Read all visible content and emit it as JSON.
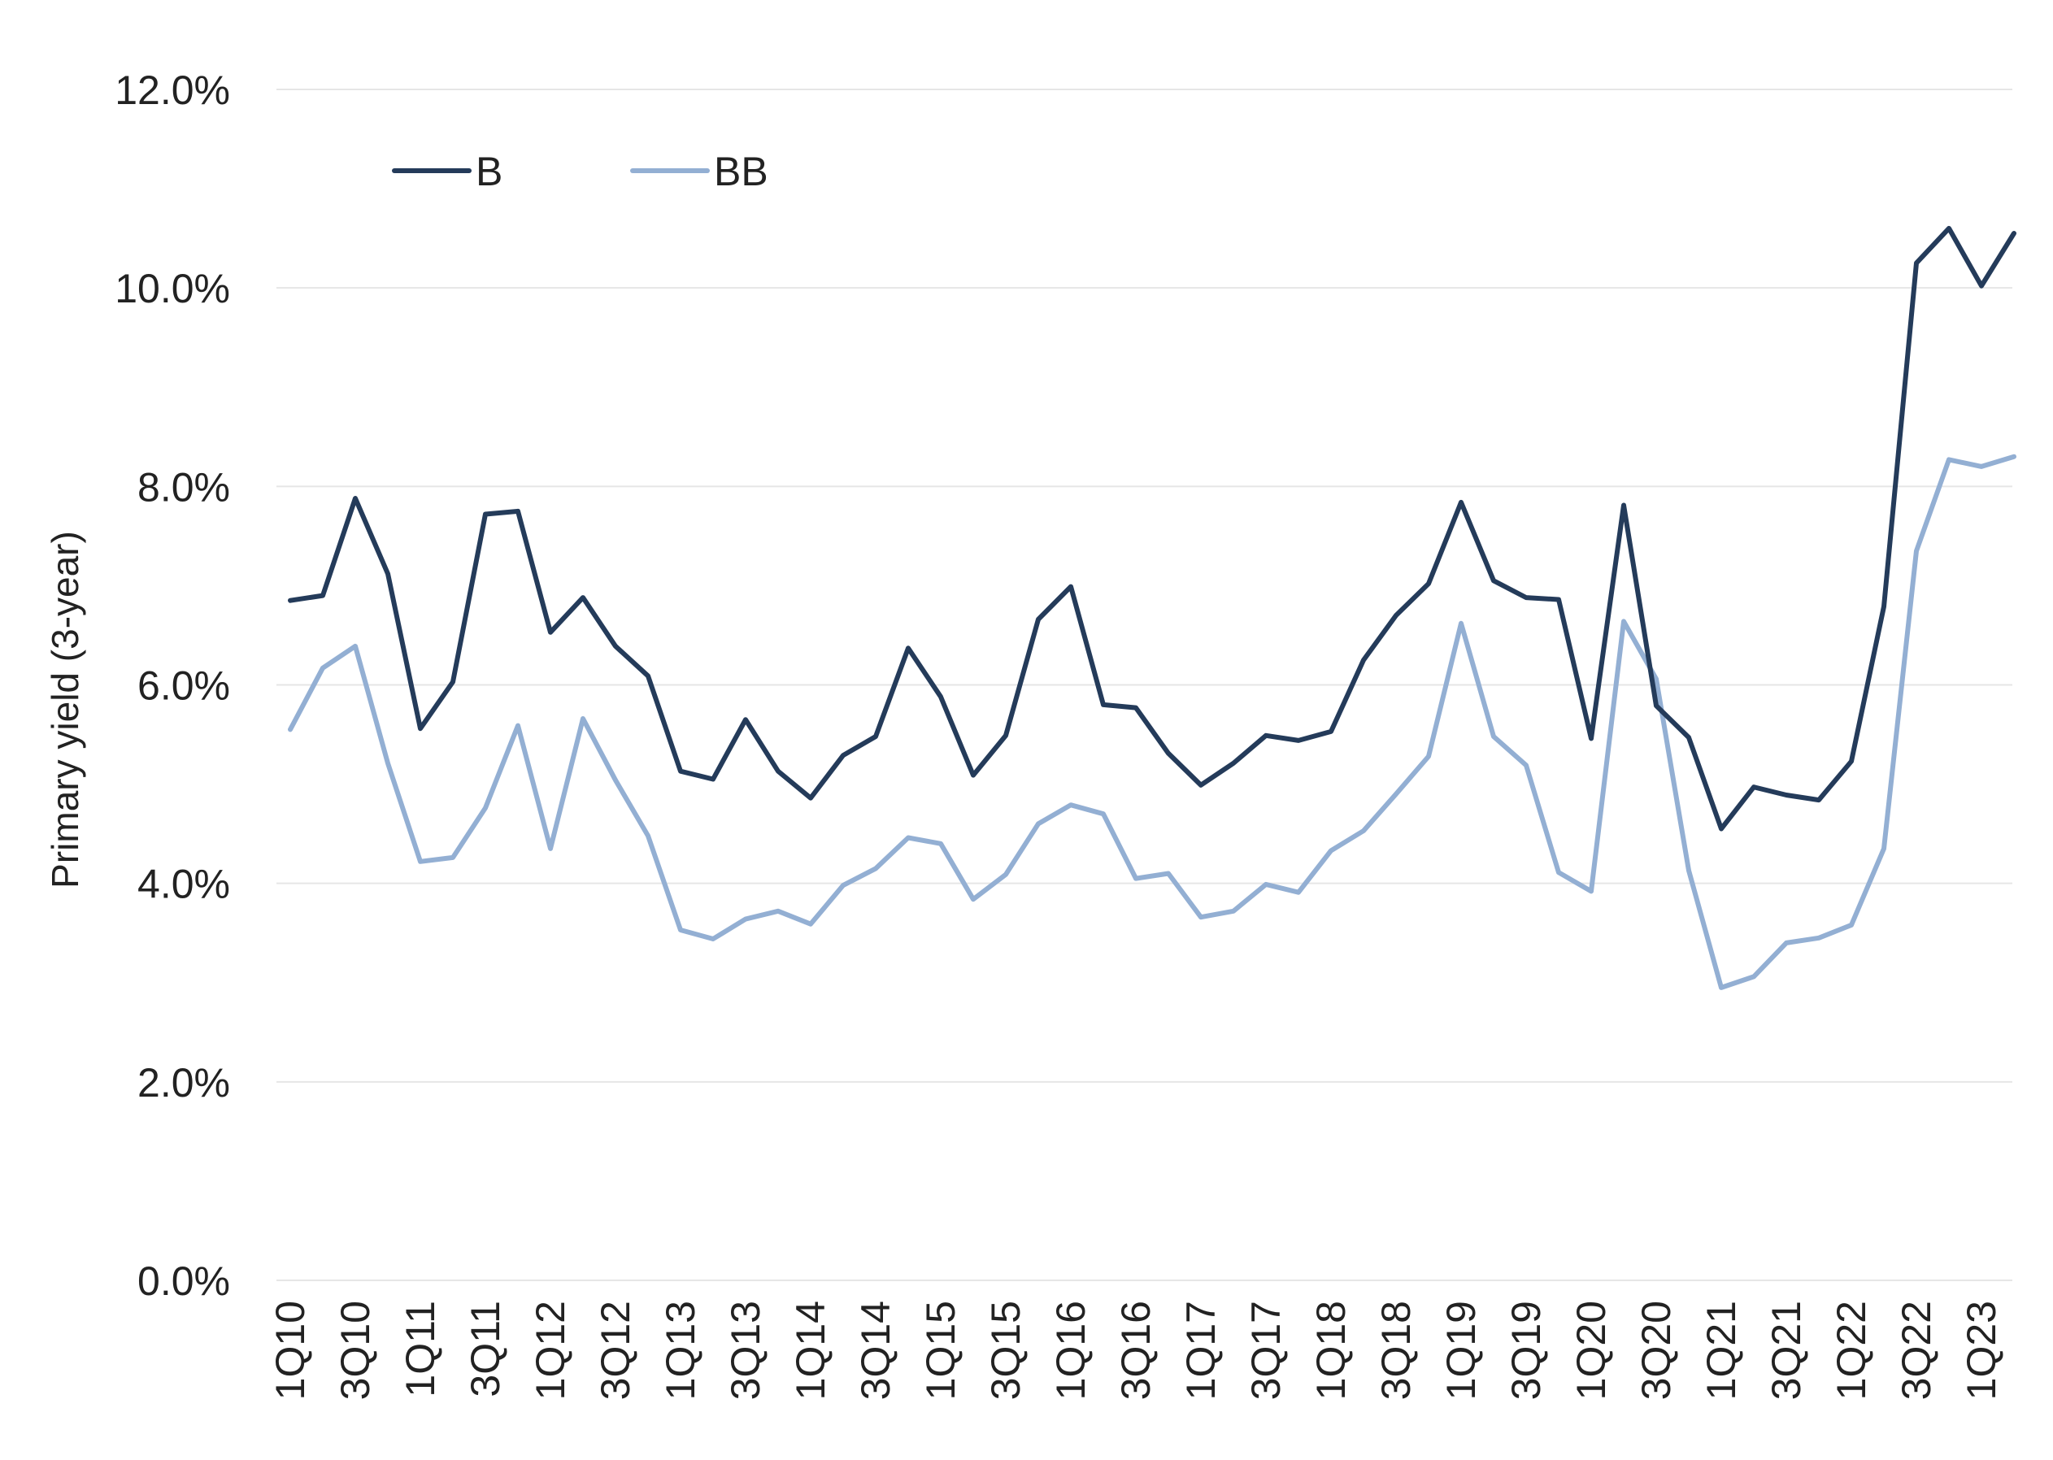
{
  "chart_data": {
    "type": "line",
    "title": "",
    "xlabel": "",
    "ylabel": "Primary yield (3-year)",
    "ylim": [
      0,
      12
    ],
    "yticks": [
      "0.0%",
      "2.0%",
      "4.0%",
      "6.0%",
      "8.0%",
      "10.0%",
      "12.0%"
    ],
    "grid": true,
    "legend_position": "top-left",
    "categories": [
      "1Q10",
      "2Q10",
      "3Q10",
      "4Q10",
      "1Q11",
      "2Q11",
      "3Q11",
      "4Q11",
      "1Q12",
      "2Q12",
      "3Q12",
      "4Q12",
      "1Q13",
      "2Q13",
      "3Q13",
      "4Q13",
      "1Q14",
      "2Q14",
      "3Q14",
      "4Q14",
      "1Q15",
      "2Q15",
      "3Q15",
      "4Q15",
      "1Q16",
      "2Q16",
      "3Q16",
      "4Q16",
      "1Q17",
      "2Q17",
      "3Q17",
      "4Q17",
      "1Q18",
      "2Q18",
      "3Q18",
      "4Q18",
      "1Q19",
      "2Q19",
      "3Q19",
      "4Q19",
      "1Q20",
      "2Q20",
      "3Q20",
      "4Q20",
      "1Q21",
      "2Q21",
      "3Q21",
      "4Q21",
      "1Q22",
      "2Q22",
      "3Q22",
      "4Q22",
      "1Q23",
      "2Q23"
    ],
    "tick_labels": [
      "1Q10",
      "3Q10",
      "1Q11",
      "3Q11",
      "1Q12",
      "3Q12",
      "1Q13",
      "3Q13",
      "1Q14",
      "3Q14",
      "1Q15",
      "3Q15",
      "1Q16",
      "3Q16",
      "1Q17",
      "3Q17",
      "1Q18",
      "3Q18",
      "1Q19",
      "3Q19",
      "1Q20",
      "3Q20",
      "1Q21",
      "3Q21",
      "1Q22",
      "3Q22",
      "1Q23"
    ],
    "series": [
      {
        "name": "B",
        "color": "#243b5a",
        "values": [
          6.85,
          6.9,
          7.88,
          7.12,
          5.56,
          6.03,
          7.72,
          7.75,
          6.53,
          6.88,
          6.39,
          6.09,
          5.13,
          5.05,
          5.65,
          5.13,
          4.86,
          5.29,
          5.48,
          6.37,
          5.88,
          5.09,
          5.49,
          6.66,
          6.99,
          5.8,
          5.77,
          5.31,
          4.99,
          5.21,
          5.49,
          5.44,
          5.53,
          6.25,
          6.7,
          7.02,
          7.84,
          7.05,
          6.88,
          6.86,
          5.46,
          7.81,
          5.79,
          5.47,
          4.55,
          4.97,
          4.89,
          4.84,
          5.23,
          6.79,
          10.25,
          10.6,
          10.02,
          10.55
        ]
      },
      {
        "name": "BB",
        "color": "#93afd3",
        "values": [
          5.55,
          6.17,
          6.39,
          5.21,
          4.22,
          4.26,
          4.76,
          5.59,
          4.35,
          5.66,
          5.04,
          4.48,
          3.53,
          3.44,
          3.64,
          3.72,
          3.59,
          3.98,
          4.15,
          4.46,
          4.4,
          3.84,
          4.09,
          4.6,
          4.79,
          4.7,
          4.05,
          4.1,
          3.66,
          3.72,
          3.99,
          3.91,
          4.33,
          4.53,
          4.9,
          5.28,
          6.62,
          5.48,
          5.19,
          4.11,
          3.92,
          6.64,
          6.06,
          4.13,
          2.95,
          3.06,
          3.4,
          3.45,
          3.58,
          4.35,
          7.35,
          8.27,
          8.2,
          8.3
        ]
      }
    ]
  }
}
